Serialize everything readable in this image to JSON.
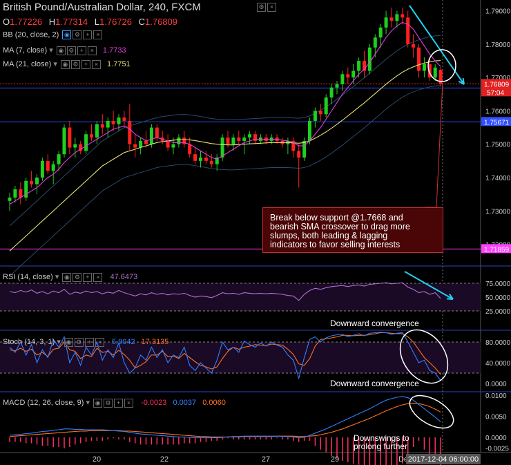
{
  "title": "British Pound/Australian Dollar, 240, FXCM",
  "ohlc": {
    "o_label": "O",
    "o": "1.77226",
    "h_label": "H",
    "h": "1.77314",
    "l_label": "L",
    "l": "1.76726",
    "c_label": "C",
    "c": "1.76809"
  },
  "indicators": {
    "bb": {
      "label": "BB (20, close, 2)"
    },
    "ma7": {
      "label": "MA (7, close)",
      "value": "1.7733",
      "color": "#e040e0"
    },
    "ma21": {
      "label": "MA (21, close)",
      "value": "1.7751",
      "color": "#e8e070"
    }
  },
  "annotation": {
    "line1": "Break below support @1.7668 and",
    "line2": "bearish SMA crossover to drag more",
    "line3": "slumps, both leading & lagging",
    "line4": "indicators to favor selling interests"
  },
  "captions": {
    "rsi": "Downward convergence",
    "stoch": "Downward convergence",
    "macd_line1": "Downswings to",
    "macd_line2": "prolong further"
  },
  "panels": {
    "rsi": {
      "label": "RSI (14, close)",
      "value": "47.6473"
    },
    "stoch": {
      "label": "Stoch (14, 3, 1)",
      "k": "5.9042",
      "d": "17.3135"
    },
    "macd": {
      "label": "MACD (12, 26, close, 9)",
      "hist": "-0.0023",
      "macd": "0.0037",
      "signal": "0.0060"
    }
  },
  "price_axis": {
    "ticks": [
      "1.79000",
      "1.78000",
      "1.77000",
      "1.76000",
      "1.75000",
      "1.74000",
      "1.73000",
      "1.72000"
    ],
    "support_tags": [
      "1.76685",
      "1.75671",
      "1.71859"
    ],
    "last_price": "1.76809",
    "countdown": "57:04"
  },
  "rsi_axis": [
    "75.0000",
    "50.0000",
    "25.0000"
  ],
  "stoch_axis": [
    "80.0000",
    "40.0000",
    "0.0000"
  ],
  "macd_axis": [
    "0.0100",
    "0.0050",
    "0.0000",
    "-0.0025"
  ],
  "time_axis": {
    "ticks": [
      "20",
      "22",
      "27",
      "29",
      "De"
    ],
    "cursor_label": "2017-12-04 06:00:00"
  },
  "colors": {
    "bull": "#1fd01f",
    "bear": "#ff2020",
    "ma7": "#e040e0",
    "ma21": "#e8e070",
    "support": "#3050ff",
    "arrow": "#20d0f0",
    "rsi": "#b070d0",
    "stoch_k": "#3080ff",
    "stoch_d": "#ff7020",
    "macd": "#3080ff",
    "signal": "#ff7020",
    "hist": "#ff3060"
  },
  "chart_data": {
    "type": "candlestick",
    "title": "British Pound/Australian Dollar, 240, FXCM",
    "x_ticks": [
      "20",
      "22",
      "27",
      "29",
      "De"
    ],
    "ylim": [
      1.717,
      1.792
    ],
    "support_levels": [
      1.76685,
      1.75671,
      1.71859
    ],
    "candles": [
      [
        1.733,
        1.7355,
        1.73,
        1.734
      ],
      [
        1.734,
        1.7375,
        1.7325,
        1.7365
      ],
      [
        1.7365,
        1.7385,
        1.732,
        1.734
      ],
      [
        1.734,
        1.74,
        1.733,
        1.739
      ],
      [
        1.739,
        1.742,
        1.737,
        1.738
      ],
      [
        1.738,
        1.741,
        1.735,
        1.74
      ],
      [
        1.74,
        1.746,
        1.739,
        1.745
      ],
      [
        1.745,
        1.747,
        1.741,
        1.742
      ],
      [
        1.742,
        1.745,
        1.738,
        1.744
      ],
      [
        1.744,
        1.748,
        1.742,
        1.747
      ],
      [
        1.747,
        1.756,
        1.746,
        1.755
      ],
      [
        1.755,
        1.757,
        1.747,
        1.749
      ],
      [
        1.749,
        1.752,
        1.746,
        1.75
      ],
      [
        1.75,
        1.751,
        1.747,
        1.748
      ],
      [
        1.748,
        1.754,
        1.747,
        1.753
      ],
      [
        1.753,
        1.756,
        1.751,
        1.752
      ],
      [
        1.752,
        1.757,
        1.75,
        1.756
      ],
      [
        1.756,
        1.759,
        1.753,
        1.755
      ],
      [
        1.755,
        1.758,
        1.752,
        1.757
      ],
      [
        1.757,
        1.76,
        1.754,
        1.756
      ],
      [
        1.756,
        1.759,
        1.754,
        1.758
      ],
      [
        1.758,
        1.76,
        1.755,
        1.757
      ],
      [
        1.757,
        1.762,
        1.748,
        1.75
      ],
      [
        1.75,
        1.753,
        1.746,
        1.749
      ],
      [
        1.749,
        1.752,
        1.747,
        1.751
      ],
      [
        1.751,
        1.754,
        1.749,
        1.75
      ],
      [
        1.75,
        1.756,
        1.749,
        1.755
      ],
      [
        1.755,
        1.756,
        1.751,
        1.752
      ],
      [
        1.752,
        1.754,
        1.75,
        1.751
      ],
      [
        1.751,
        1.753,
        1.748,
        1.749
      ],
      [
        1.749,
        1.752,
        1.747,
        1.75
      ],
      [
        1.75,
        1.753,
        1.749,
        1.752
      ],
      [
        1.752,
        1.754,
        1.749,
        1.75
      ],
      [
        1.75,
        1.752,
        1.746,
        1.747
      ],
      [
        1.747,
        1.749,
        1.744,
        1.745
      ],
      [
        1.745,
        1.748,
        1.743,
        1.746
      ],
      [
        1.746,
        1.748,
        1.744,
        1.745
      ],
      [
        1.745,
        1.747,
        1.743,
        1.744
      ],
      [
        1.744,
        1.747,
        1.742,
        1.746
      ],
      [
        1.746,
        1.753,
        1.745,
        1.752
      ],
      [
        1.752,
        1.754,
        1.749,
        1.75
      ],
      [
        1.75,
        1.753,
        1.748,
        1.752
      ],
      [
        1.752,
        1.754,
        1.75,
        1.751
      ],
      [
        1.751,
        1.753,
        1.747,
        1.752
      ],
      [
        1.752,
        1.754,
        1.75,
        1.753
      ],
      [
        1.753,
        1.754,
        1.75,
        1.751
      ],
      [
        1.751,
        1.753,
        1.75,
        1.752
      ],
      [
        1.752,
        1.753,
        1.75,
        1.751
      ],
      [
        1.751,
        1.753,
        1.75,
        1.752
      ],
      [
        1.752,
        1.753,
        1.75,
        1.751
      ],
      [
        1.751,
        1.752,
        1.749,
        1.75
      ],
      [
        1.75,
        1.752,
        1.747,
        1.751
      ],
      [
        1.751,
        1.752,
        1.746,
        1.748
      ],
      [
        1.748,
        1.75,
        1.737,
        1.746
      ],
      [
        1.746,
        1.752,
        1.745,
        1.751
      ],
      [
        1.751,
        1.758,
        1.75,
        1.757
      ],
      [
        1.757,
        1.761,
        1.755,
        1.76
      ],
      [
        1.76,
        1.762,
        1.757,
        1.759
      ],
      [
        1.759,
        1.765,
        1.758,
        1.764
      ],
      [
        1.764,
        1.768,
        1.762,
        1.767
      ],
      [
        1.767,
        1.769,
        1.765,
        1.768
      ],
      [
        1.768,
        1.772,
        1.766,
        1.771
      ],
      [
        1.771,
        1.773,
        1.768,
        1.77
      ],
      [
        1.77,
        1.774,
        1.768,
        1.772
      ],
      [
        1.772,
        1.776,
        1.77,
        1.775
      ],
      [
        1.775,
        1.778,
        1.77,
        1.772
      ],
      [
        1.772,
        1.78,
        1.771,
        1.779
      ],
      [
        1.779,
        1.783,
        1.776,
        1.782
      ],
      [
        1.782,
        1.786,
        1.779,
        1.785
      ],
      [
        1.785,
        1.79,
        1.783,
        1.788
      ],
      [
        1.788,
        1.791,
        1.785,
        1.787
      ],
      [
        1.787,
        1.79,
        1.785,
        1.789
      ],
      [
        1.789,
        1.791,
        1.786,
        1.788
      ],
      [
        1.788,
        1.79,
        1.779,
        1.78
      ],
      [
        1.78,
        1.783,
        1.776,
        1.779
      ],
      [
        1.779,
        1.78,
        1.77,
        1.772
      ],
      [
        1.772,
        1.776,
        1.77,
        1.774
      ],
      [
        1.774,
        1.776,
        1.769,
        1.77
      ],
      [
        1.77,
        1.774,
        1.769,
        1.773
      ],
      [
        1.7723,
        1.7731,
        1.7673,
        1.7681
      ]
    ],
    "ma7": [
      1.732,
      1.733,
      1.734,
      1.735,
      1.736,
      1.737,
      1.7385,
      1.74,
      1.741,
      1.7425,
      1.7445,
      1.746,
      1.7475,
      1.7485,
      1.7495,
      1.7505,
      1.7515,
      1.7525,
      1.7535,
      1.7545,
      1.755,
      1.7555,
      1.7545,
      1.753,
      1.752,
      1.751,
      1.7515,
      1.752,
      1.7515,
      1.751,
      1.7505,
      1.7505,
      1.7505,
      1.75,
      1.749,
      1.748,
      1.747,
      1.746,
      1.7455,
      1.7465,
      1.7475,
      1.7485,
      1.7495,
      1.7505,
      1.751,
      1.7515,
      1.7515,
      1.7515,
      1.7515,
      1.7515,
      1.7512,
      1.751,
      1.7505,
      1.7495,
      1.7495,
      1.751,
      1.753,
      1.755,
      1.7575,
      1.76,
      1.7625,
      1.765,
      1.767,
      1.769,
      1.771,
      1.7725,
      1.7745,
      1.777,
      1.7795,
      1.782,
      1.784,
      1.7855,
      1.7865,
      1.786,
      1.7845,
      1.782,
      1.7795,
      1.777,
      1.775,
      1.7733
    ],
    "ma21": [
      1.718,
      1.7195,
      1.721,
      1.7225,
      1.724,
      1.7255,
      1.727,
      1.7285,
      1.73,
      1.7315,
      1.733,
      1.7345,
      1.736,
      1.7375,
      1.739,
      1.7405,
      1.742,
      1.7435,
      1.7445,
      1.7455,
      1.7465,
      1.7475,
      1.748,
      1.7485,
      1.749,
      1.7495,
      1.75,
      1.7505,
      1.7508,
      1.751,
      1.7512,
      1.7514,
      1.7514,
      1.7513,
      1.7511,
      1.7508,
      1.7505,
      1.7502,
      1.75,
      1.7499,
      1.7498,
      1.7498,
      1.7499,
      1.75,
      1.7501,
      1.7502,
      1.7503,
      1.7504,
      1.7505,
      1.7505,
      1.7505,
      1.7505,
      1.7504,
      1.7503,
      1.7505,
      1.751,
      1.7518,
      1.7527,
      1.7537,
      1.7548,
      1.756,
      1.7572,
      1.7585,
      1.7598,
      1.7611,
      1.7624,
      1.7638,
      1.7652,
      1.7666,
      1.768,
      1.7693,
      1.7705,
      1.7716,
      1.7725,
      1.7732,
      1.7738,
      1.7743,
      1.7747,
      1.775,
      1.7751
    ],
    "rsi": [
      60,
      58,
      62,
      59,
      63,
      57,
      60,
      56,
      61,
      58,
      64,
      55,
      59,
      57,
      61,
      58,
      60,
      56,
      59,
      57,
      62,
      58,
      55,
      52,
      56,
      54,
      58,
      55,
      57,
      54,
      56,
      55,
      57,
      53,
      50,
      52,
      51,
      49,
      53,
      58,
      56,
      57,
      55,
      58,
      57,
      56,
      57,
      56,
      57,
      56,
      55,
      53,
      52,
      44,
      55,
      62,
      66,
      64,
      67,
      69,
      70,
      71,
      69,
      71,
      72,
      70,
      73,
      74,
      75,
      76,
      74,
      75,
      76,
      68,
      64,
      58,
      60,
      55,
      58,
      47.6
    ],
    "stoch_k": [
      70,
      60,
      80,
      55,
      75,
      40,
      65,
      50,
      85,
      70,
      90,
      40,
      60,
      35,
      70,
      55,
      80,
      45,
      65,
      50,
      78,
      40,
      20,
      30,
      55,
      45,
      70,
      50,
      65,
      40,
      55,
      50,
      70,
      35,
      25,
      40,
      30,
      20,
      45,
      80,
      65,
      70,
      60,
      82,
      75,
      70,
      78,
      72,
      80,
      74,
      70,
      55,
      45,
      10,
      50,
      85,
      90,
      80,
      88,
      92,
      94,
      95,
      90,
      93,
      96,
      92,
      97,
      98,
      99,
      98,
      95,
      97,
      98,
      80,
      60,
      40,
      45,
      25,
      20,
      5.9
    ],
    "stoch_d": [
      65,
      63,
      68,
      62,
      66,
      55,
      60,
      52,
      66,
      68,
      80,
      65,
      62,
      48,
      55,
      52,
      68,
      60,
      62,
      55,
      64,
      56,
      45,
      30,
      35,
      42,
      55,
      55,
      62,
      52,
      53,
      48,
      58,
      50,
      42,
      35,
      32,
      28,
      32,
      48,
      62,
      70,
      66,
      70,
      72,
      75,
      74,
      73,
      76,
      75,
      74,
      66,
      56,
      38,
      35,
      48,
      72,
      85,
      86,
      88,
      90,
      93,
      93,
      92,
      93,
      93,
      94,
      96,
      98,
      98,
      97,
      96,
      96,
      90,
      80,
      65,
      50,
      40,
      30,
      17.3
    ],
    "macd": [
      0.0005,
      0.0006,
      0.0007,
      0.0009,
      0.001,
      0.0012,
      0.0014,
      0.0015,
      0.0017,
      0.0018,
      0.002,
      0.002,
      0.0019,
      0.0019,
      0.0018,
      0.0018,
      0.0018,
      0.0018,
      0.0017,
      0.0016,
      0.0015,
      0.0014,
      0.0012,
      0.001,
      0.0008,
      0.0007,
      0.0006,
      0.0005,
      0.0004,
      0.0003,
      0.0002,
      0.0001,
      0.0001,
      0.0,
      -0.0001,
      -0.0001,
      -0.0001,
      -0.0001,
      -0.0001,
      0.0,
      0.0001,
      0.0002,
      0.0002,
      0.0003,
      0.0003,
      0.0003,
      0.0003,
      0.0003,
      0.0003,
      0.0003,
      0.0002,
      0.0002,
      0.0001,
      -0.0001,
      0.0,
      0.0005,
      0.001,
      0.0015,
      0.002,
      0.0026,
      0.0032,
      0.0038,
      0.0044,
      0.005,
      0.0056,
      0.0062,
      0.0068,
      0.0075,
      0.0082,
      0.0088,
      0.0092,
      0.0095,
      0.0097,
      0.0094,
      0.0088,
      0.0078,
      0.0068,
      0.0058,
      0.0048,
      0.0037
    ],
    "signal": [
      0.0002,
      0.0003,
      0.0004,
      0.0005,
      0.0006,
      0.0007,
      0.0008,
      0.0009,
      0.001,
      0.0011,
      0.0012,
      0.0013,
      0.0014,
      0.0015,
      0.0015,
      0.0016,
      0.0016,
      0.0016,
      0.0016,
      0.0016,
      0.0016,
      0.0015,
      0.0015,
      0.0014,
      0.0013,
      0.0012,
      0.0011,
      0.001,
      0.0009,
      0.0008,
      0.0007,
      0.0006,
      0.0005,
      0.0004,
      0.0003,
      0.0002,
      0.0002,
      0.0001,
      0.0001,
      0.0001,
      0.0001,
      0.0001,
      0.0001,
      0.0002,
      0.0002,
      0.0002,
      0.0002,
      0.0002,
      0.0002,
      0.0003,
      0.0003,
      0.0003,
      0.0003,
      0.0002,
      0.0002,
      0.0003,
      0.0004,
      0.0006,
      0.0009,
      0.0012,
      0.0016,
      0.002,
      0.0025,
      0.003,
      0.0035,
      0.004,
      0.0045,
      0.0051,
      0.0057,
      0.0063,
      0.0068,
      0.0073,
      0.0077,
      0.008,
      0.0081,
      0.008,
      0.0077,
      0.0073,
      0.0067,
      0.006
    ]
  }
}
